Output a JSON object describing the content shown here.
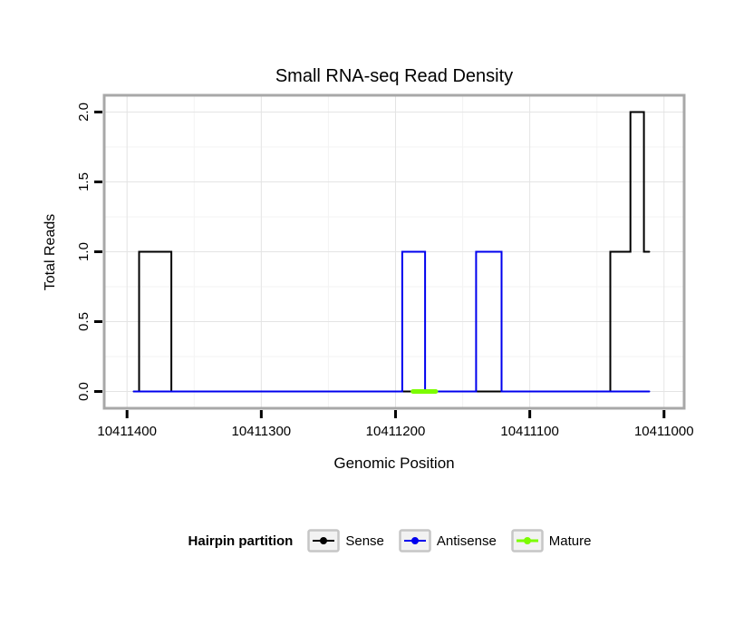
{
  "chart_data": {
    "type": "line",
    "title": "Small RNA-seq Read Density",
    "xlabel": "Genomic Position",
    "ylabel": "Total Reads",
    "legend_title": "Hairpin partition",
    "legend_position": "bottom",
    "grid": true,
    "x_axis_reversed": true,
    "x_domain": [
      10411417,
      10410985
    ],
    "ylim": [
      -0.12,
      2.12
    ],
    "x_ticks": [
      {
        "v": 10411400,
        "label": "10411400"
      },
      {
        "v": 10411300,
        "label": "10411300"
      },
      {
        "v": 10411200,
        "label": "10411200"
      },
      {
        "v": 10411100,
        "label": "10411100"
      },
      {
        "v": 10411000,
        "label": "10411000"
      }
    ],
    "y_ticks": [
      {
        "v": 0.0,
        "label": "0.0"
      },
      {
        "v": 0.5,
        "label": "0.5"
      },
      {
        "v": 1.0,
        "label": "1.0"
      },
      {
        "v": 1.5,
        "label": "1.5"
      },
      {
        "v": 2.0,
        "label": "2.0"
      }
    ],
    "colors": {
      "grid_major": "#e4e4e4",
      "grid_minor": "#f3f3f3",
      "panel_border": "#a8a8a8",
      "axis_tick": "#000000",
      "panel_background": "#ffffff"
    },
    "series": [
      {
        "name": "Sense",
        "color": "#000000",
        "width": 2,
        "points": [
          [
            10411395,
            0
          ],
          [
            10411391,
            0
          ],
          [
            10411391,
            1
          ],
          [
            10411367,
            1
          ],
          [
            10411367,
            0
          ],
          [
            10411040,
            0
          ],
          [
            10411040,
            1
          ],
          [
            10411025,
            1
          ],
          [
            10411025,
            2
          ],
          [
            10411015,
            2
          ],
          [
            10411015,
            1
          ],
          [
            10411011,
            1
          ]
        ]
      },
      {
        "name": "Antisense",
        "color": "#0000ee",
        "width": 2,
        "points": [
          [
            10411395,
            0
          ],
          [
            10411195,
            0
          ],
          [
            10411195,
            1
          ],
          [
            10411178,
            1
          ],
          [
            10411178,
            0
          ],
          [
            10411140,
            0
          ],
          [
            10411140,
            1
          ],
          [
            10411121,
            1
          ],
          [
            10411121,
            0
          ],
          [
            10411011,
            0
          ]
        ]
      },
      {
        "name": "Mature",
        "color": "#7cfc00",
        "width": 5,
        "points": [
          [
            10411187,
            0
          ],
          [
            10411170,
            0
          ]
        ]
      }
    ]
  }
}
